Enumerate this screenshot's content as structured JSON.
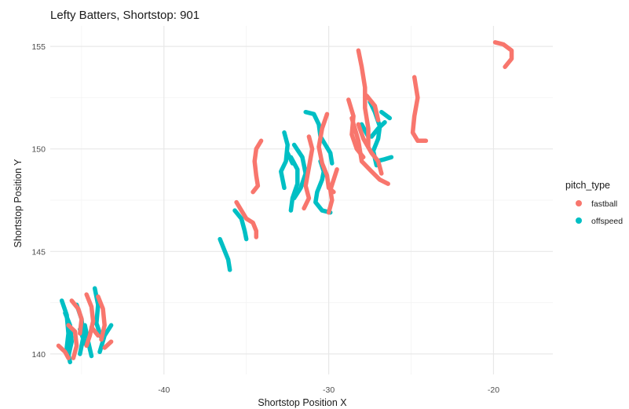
{
  "chart_data": {
    "type": "line",
    "title": "Lefty Batters, Shortstop: 901",
    "xlabel": "Shortstop Position X",
    "ylabel": "Shortstop Position Y",
    "xlim": [
      -46.9,
      -16.4
    ],
    "ylim": [
      139.0,
      156.0
    ],
    "x_ticks": [
      -40,
      -30,
      -20
    ],
    "y_ticks": [
      140,
      145,
      150,
      155
    ],
    "x_tick_labels": [
      "-40",
      "-30",
      "-20"
    ],
    "y_tick_labels": [
      "140",
      "145",
      "150",
      "155"
    ],
    "grid": true,
    "legend": {
      "title": "pitch_type",
      "position": "right",
      "entries": [
        {
          "label": "fastball",
          "color": "#F8766D"
        },
        {
          "label": "offspeed",
          "color": "#00BFC4"
        }
      ]
    },
    "series": [
      {
        "name": "offspeed",
        "color": "#00BFC4",
        "paths": [
          [
            [
              -46.2,
              142.6
            ],
            [
              -45.9,
              141.9
            ],
            [
              -45.8,
              141.0
            ],
            [
              -45.9,
              140.3
            ],
            [
              -45.7,
              139.6
            ]
          ],
          [
            [
              -45.3,
              142.4
            ],
            [
              -45.0,
              141.7
            ],
            [
              -44.9,
              140.8
            ],
            [
              -45.1,
              140.0
            ]
          ],
          [
            [
              -44.8,
              141.4
            ],
            [
              -44.6,
              140.6
            ],
            [
              -44.4,
              139.9
            ]
          ],
          [
            [
              -44.2,
              143.2
            ],
            [
              -44.0,
              142.4
            ],
            [
              -44.1,
              141.5
            ],
            [
              -43.8,
              140.8
            ]
          ],
          [
            [
              -45.1,
              141.2
            ],
            [
              -44.8,
              140.5
            ]
          ],
          [
            [
              -43.2,
              141.4
            ],
            [
              -43.6,
              140.9
            ],
            [
              -43.9,
              140.1
            ]
          ],
          [
            [
              -46.0,
              142.0
            ],
            [
              -45.7,
              141.4
            ],
            [
              -45.6,
              140.6
            ],
            [
              -45.8,
              139.9
            ]
          ],
          [
            [
              -36.6,
              145.6
            ],
            [
              -36.3,
              145.0
            ],
            [
              -36.1,
              144.6
            ],
            [
              -36.0,
              144.1
            ]
          ],
          [
            [
              -35.7,
              147.0
            ],
            [
              -35.3,
              146.6
            ],
            [
              -35.1,
              146.0
            ],
            [
              -35.0,
              145.6
            ]
          ],
          [
            [
              -32.7,
              150.8
            ],
            [
              -32.5,
              150.2
            ],
            [
              -32.6,
              149.4
            ],
            [
              -32.9,
              148.9
            ],
            [
              -32.7,
              148.1
            ]
          ],
          [
            [
              -32.3,
              149.6
            ],
            [
              -31.9,
              149.0
            ],
            [
              -31.9,
              148.3
            ],
            [
              -32.2,
              147.6
            ],
            [
              -32.3,
              147.0
            ]
          ],
          [
            [
              -32.1,
              150.2
            ],
            [
              -31.6,
              149.6
            ],
            [
              -31.4,
              148.8
            ],
            [
              -31.7,
              148.1
            ],
            [
              -32.1,
              147.6
            ]
          ],
          [
            [
              -32.5,
              149.8
            ],
            [
              -32.2,
              149.3
            ]
          ],
          [
            [
              -31.4,
              151.8
            ],
            [
              -30.9,
              151.7
            ],
            [
              -30.6,
              151.2
            ],
            [
              -30.5,
              150.6
            ],
            [
              -30.2,
              150.2
            ],
            [
              -29.9,
              149.8
            ],
            [
              -29.8,
              149.3
            ]
          ],
          [
            [
              -30.5,
              149.4
            ],
            [
              -30.3,
              148.9
            ],
            [
              -30.4,
              148.5
            ],
            [
              -30.7,
              147.9
            ],
            [
              -30.8,
              147.4
            ],
            [
              -30.4,
              147.0
            ],
            [
              -29.9,
              146.9
            ]
          ],
          [
            [
              -27.5,
              152.3
            ],
            [
              -27.2,
              151.8
            ],
            [
              -26.9,
              151.1
            ],
            [
              -27.0,
              150.5
            ],
            [
              -27.3,
              149.9
            ],
            [
              -27.1,
              149.2
            ]
          ],
          [
            [
              -26.8,
              151.8
            ],
            [
              -26.3,
              151.5
            ]
          ],
          [
            [
              -27.4,
              150.6
            ],
            [
              -27.0,
              151.0
            ],
            [
              -26.6,
              151.3
            ]
          ],
          [
            [
              -28.0,
              151.2
            ],
            [
              -27.6,
              150.6
            ]
          ],
          [
            [
              -27.1,
              149.4
            ],
            [
              -26.6,
              149.5
            ],
            [
              -26.2,
              149.6
            ]
          ]
        ]
      },
      {
        "name": "fastball",
        "color": "#F8766D",
        "paths": [
          [
            [
              -46.4,
              140.4
            ],
            [
              -46.0,
              140.1
            ],
            [
              -45.8,
              139.8
            ]
          ],
          [
            [
              -45.8,
              141.4
            ],
            [
              -45.4,
              141.1
            ],
            [
              -45.3,
              140.4
            ],
            [
              -45.5,
              139.8
            ]
          ],
          [
            [
              -45.6,
              142.6
            ],
            [
              -45.2,
              142.2
            ],
            [
              -45.0,
              141.7
            ],
            [
              -45.1,
              141.0
            ]
          ],
          [
            [
              -44.7,
              142.9
            ],
            [
              -44.4,
              142.3
            ],
            [
              -44.3,
              141.6
            ],
            [
              -44.5,
              140.9
            ],
            [
              -44.7,
              140.4
            ]
          ],
          [
            [
              -44.4,
              141.3
            ],
            [
              -44.0,
              140.9
            ]
          ],
          [
            [
              -44.0,
              142.8
            ],
            [
              -43.7,
              142.2
            ],
            [
              -43.6,
              141.4
            ],
            [
              -43.8,
              140.7
            ]
          ],
          [
            [
              -43.6,
              140.3
            ],
            [
              -43.2,
              140.6
            ]
          ],
          [
            [
              -35.6,
              147.4
            ],
            [
              -35.3,
              147.0
            ],
            [
              -35.0,
              146.6
            ],
            [
              -34.6,
              146.4
            ],
            [
              -34.4,
              146.0
            ],
            [
              -34.4,
              145.7
            ]
          ],
          [
            [
              -34.1,
              150.4
            ],
            [
              -34.4,
              150.0
            ],
            [
              -34.5,
              149.4
            ],
            [
              -34.4,
              148.7
            ],
            [
              -34.3,
              148.2
            ],
            [
              -34.6,
              147.9
            ]
          ],
          [
            [
              -31.2,
              150.6
            ],
            [
              -31.0,
              150.0
            ],
            [
              -31.2,
              149.1
            ],
            [
              -31.4,
              148.2
            ],
            [
              -31.2,
              147.6
            ],
            [
              -31.5,
              147.1
            ]
          ],
          [
            [
              -30.1,
              151.7
            ],
            [
              -30.4,
              151.0
            ],
            [
              -30.6,
              150.1
            ],
            [
              -30.4,
              149.3
            ],
            [
              -30.1,
              148.7
            ],
            [
              -30.0,
              148.1
            ],
            [
              -29.7,
              147.9
            ]
          ],
          [
            [
              -29.5,
              149.0
            ],
            [
              -29.7,
              148.5
            ],
            [
              -29.9,
              148.0
            ],
            [
              -29.8,
              147.5
            ],
            [
              -30.0,
              146.9
            ]
          ],
          [
            [
              -28.2,
              154.8
            ],
            [
              -28.0,
              154.0
            ],
            [
              -27.8,
              153.0
            ],
            [
              -27.8,
              152.0
            ],
            [
              -27.6,
              151.0
            ],
            [
              -27.6,
              150.1
            ]
          ],
          [
            [
              -28.8,
              152.4
            ],
            [
              -28.5,
              151.6
            ],
            [
              -28.6,
              150.7
            ],
            [
              -28.3,
              150.0
            ],
            [
              -27.9,
              149.6
            ]
          ],
          [
            [
              -28.2,
              151.2
            ],
            [
              -27.9,
              150.5
            ],
            [
              -27.4,
              149.8
            ],
            [
              -27.0,
              149.4
            ],
            [
              -26.8,
              148.8
            ]
          ],
          [
            [
              -28.6,
              151.5
            ],
            [
              -28.2,
              150.4
            ],
            [
              -28.0,
              149.4
            ],
            [
              -27.4,
              148.9
            ],
            [
              -26.9,
              148.5
            ],
            [
              -26.4,
              148.3
            ]
          ],
          [
            [
              -27.7,
              152.6
            ],
            [
              -27.2,
              152.1
            ],
            [
              -27.0,
              151.4
            ]
          ],
          [
            [
              -24.8,
              153.5
            ],
            [
              -24.6,
              152.5
            ],
            [
              -24.8,
              151.6
            ],
            [
              -24.9,
              150.8
            ],
            [
              -24.6,
              150.4
            ],
            [
              -24.1,
              150.4
            ]
          ],
          [
            [
              -19.9,
              155.2
            ],
            [
              -19.4,
              155.1
            ],
            [
              -18.9,
              154.8
            ],
            [
              -18.9,
              154.4
            ],
            [
              -19.3,
              154.0
            ]
          ]
        ]
      }
    ]
  }
}
